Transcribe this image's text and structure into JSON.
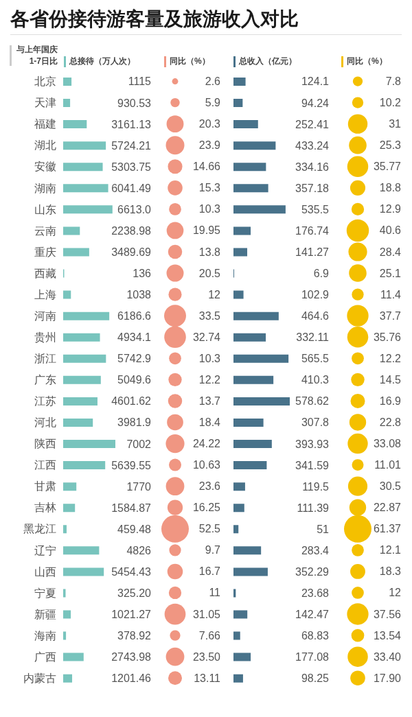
{
  "chart_data": [
    {
      "type": "bar",
      "orientation": "horizontal",
      "title": "各省份接待游客量及旅游收入对比",
      "annotations": [
        "与上年国庆1-7日比"
      ],
      "legend": "top",
      "tick_labels": "y",
      "categories": [
        "北京",
        "天津",
        "福建",
        "湖北",
        "安徽",
        "湖南",
        "山东",
        "云南",
        "重庆",
        "西藏",
        "上海",
        "河南",
        "贵州",
        "浙江",
        "广东",
        "江苏",
        "河北",
        "陕西",
        "江西",
        "甘肃",
        "吉林",
        "黑龙江",
        "辽宁",
        "山西",
        "宁夏",
        "新疆",
        "海南",
        "广西",
        "内蒙古"
      ],
      "series": [
        {
          "name": "总接待（万人次）",
          "color": "#78c4bd",
          "values": [
            1115,
            930.53,
            3161.13,
            5724.21,
            5303.75,
            6041.49,
            6613.0,
            2238.98,
            3489.69,
            136,
            1038,
            6186.6,
            4934.1,
            5742.9,
            5049.6,
            4601.62,
            3981.9,
            7002,
            5639.55,
            1770,
            1584.87,
            459.48,
            4826,
            5454.43,
            325.2,
            1021.27,
            378.92,
            2743.98,
            1201.46
          ],
          "value_labels": [
            "1115",
            "930.53",
            "3161.13",
            "5724.21",
            "5303.75",
            "6041.49",
            "6613.0",
            "2238.98",
            "3489.69",
            "136",
            "1038",
            "6186.6",
            "4934.1",
            "5742.9",
            "5049.6",
            "4601.62",
            "3981.9",
            "7002",
            "5639.55",
            "1770",
            "1584.87",
            "459.48",
            "4826",
            "5454.43",
            "325.20",
            "1021.27",
            "378.92",
            "2743.98",
            "1201.46"
          ]
        }
      ]
    },
    {
      "type": "other",
      "legend": "top",
      "categories": [
        null,
        null,
        null,
        null,
        null,
        null,
        null,
        null,
        null,
        null,
        null,
        null,
        null,
        null,
        null,
        null,
        null,
        null,
        null,
        null,
        null,
        null,
        null,
        null,
        null,
        null,
        null,
        null,
        null
      ],
      "series": [
        {
          "name": "同比（%）",
          "color": "#f09682",
          "values": [
            2.6,
            5.9,
            20.3,
            23.9,
            14.66,
            15.3,
            10.3,
            19.95,
            13.8,
            20.5,
            12,
            33.5,
            32.74,
            10.3,
            12.2,
            13.7,
            18.4,
            24.22,
            10.63,
            23.6,
            16.25,
            52.5,
            9.7,
            16.7,
            11,
            31.05,
            7.66,
            23.5,
            13.11
          ],
          "value_labels": [
            "2.6",
            "5.9",
            "20.3",
            "23.9",
            "14.66",
            "15.3",
            "10.3",
            "19.95",
            "13.8",
            "20.5",
            "12",
            "33.5",
            "32.74",
            "10.3",
            "12.2",
            "13.7",
            "18.4",
            "24.22",
            "10.63",
            "23.6",
            "16.25",
            "52.5",
            "9.7",
            "16.7",
            "11",
            "31.05",
            "7.66",
            "23.50",
            "13.11"
          ]
        }
      ]
    },
    {
      "type": "bar",
      "orientation": "horizontal",
      "legend": "top",
      "categories": [
        null,
        null,
        null,
        null,
        null,
        null,
        null,
        null,
        null,
        null,
        null,
        null,
        null,
        null,
        null,
        null,
        null,
        null,
        null,
        null,
        null,
        null,
        null,
        null,
        null,
        null,
        null,
        null,
        null
      ],
      "series": [
        {
          "name": "总收入（亿元）",
          "color": "#48728a",
          "values": [
            124.1,
            94.24,
            252.41,
            433.24,
            334.16,
            357.18,
            535.5,
            176.74,
            141.27,
            6.9,
            102.9,
            464.6,
            332.11,
            565.5,
            410.3,
            578.62,
            307.8,
            393.93,
            341.59,
            119.5,
            111.39,
            51,
            283.4,
            352.29,
            23.68,
            142.47,
            68.83,
            177.08,
            98.25
          ],
          "value_labels": [
            "124.1",
            "94.24",
            "252.41",
            "433.24",
            "334.16",
            "357.18",
            "535.5",
            "176.74",
            "141.27",
            "6.9",
            "102.9",
            "464.6",
            "332.11",
            "565.5",
            "410.3",
            "578.62",
            "307.8",
            "393.93",
            "341.59",
            "119.5",
            "111.39",
            "51",
            "283.4",
            "352.29",
            "23.68",
            "142.47",
            "68.83",
            "177.08",
            "98.25"
          ]
        }
      ]
    },
    {
      "type": "other",
      "legend": "top",
      "categories": [
        null,
        null,
        null,
        null,
        null,
        null,
        null,
        null,
        null,
        null,
        null,
        null,
        null,
        null,
        null,
        null,
        null,
        null,
        null,
        null,
        null,
        null,
        null,
        null,
        null,
        null,
        null,
        null,
        null
      ],
      "series": [
        {
          "name": "同比（%）",
          "color": "#f4c000",
          "values": [
            7.8,
            10.2,
            31,
            25.3,
            35.77,
            18.8,
            12.9,
            40.6,
            28.4,
            25.1,
            11.4,
            37.7,
            35.76,
            12.2,
            14.5,
            16.9,
            22.8,
            33.08,
            11.01,
            30.5,
            22.87,
            61.37,
            12.1,
            18.3,
            12,
            37.56,
            13.54,
            33.4,
            17.9
          ],
          "value_labels": [
            "7.8",
            "10.2",
            "31",
            "25.3",
            "35.77",
            "18.8",
            "12.9",
            "40.6",
            "28.4",
            "25.1",
            "11.4",
            "37.7",
            "35.76",
            "12.2",
            "14.5",
            "16.9",
            "22.8",
            "33.08",
            "11.01",
            "30.5",
            "22.87",
            "61.37",
            "12.1",
            "18.3",
            "12",
            "37.56",
            "13.54",
            "33.40",
            "17.90"
          ]
        }
      ]
    }
  ]
}
